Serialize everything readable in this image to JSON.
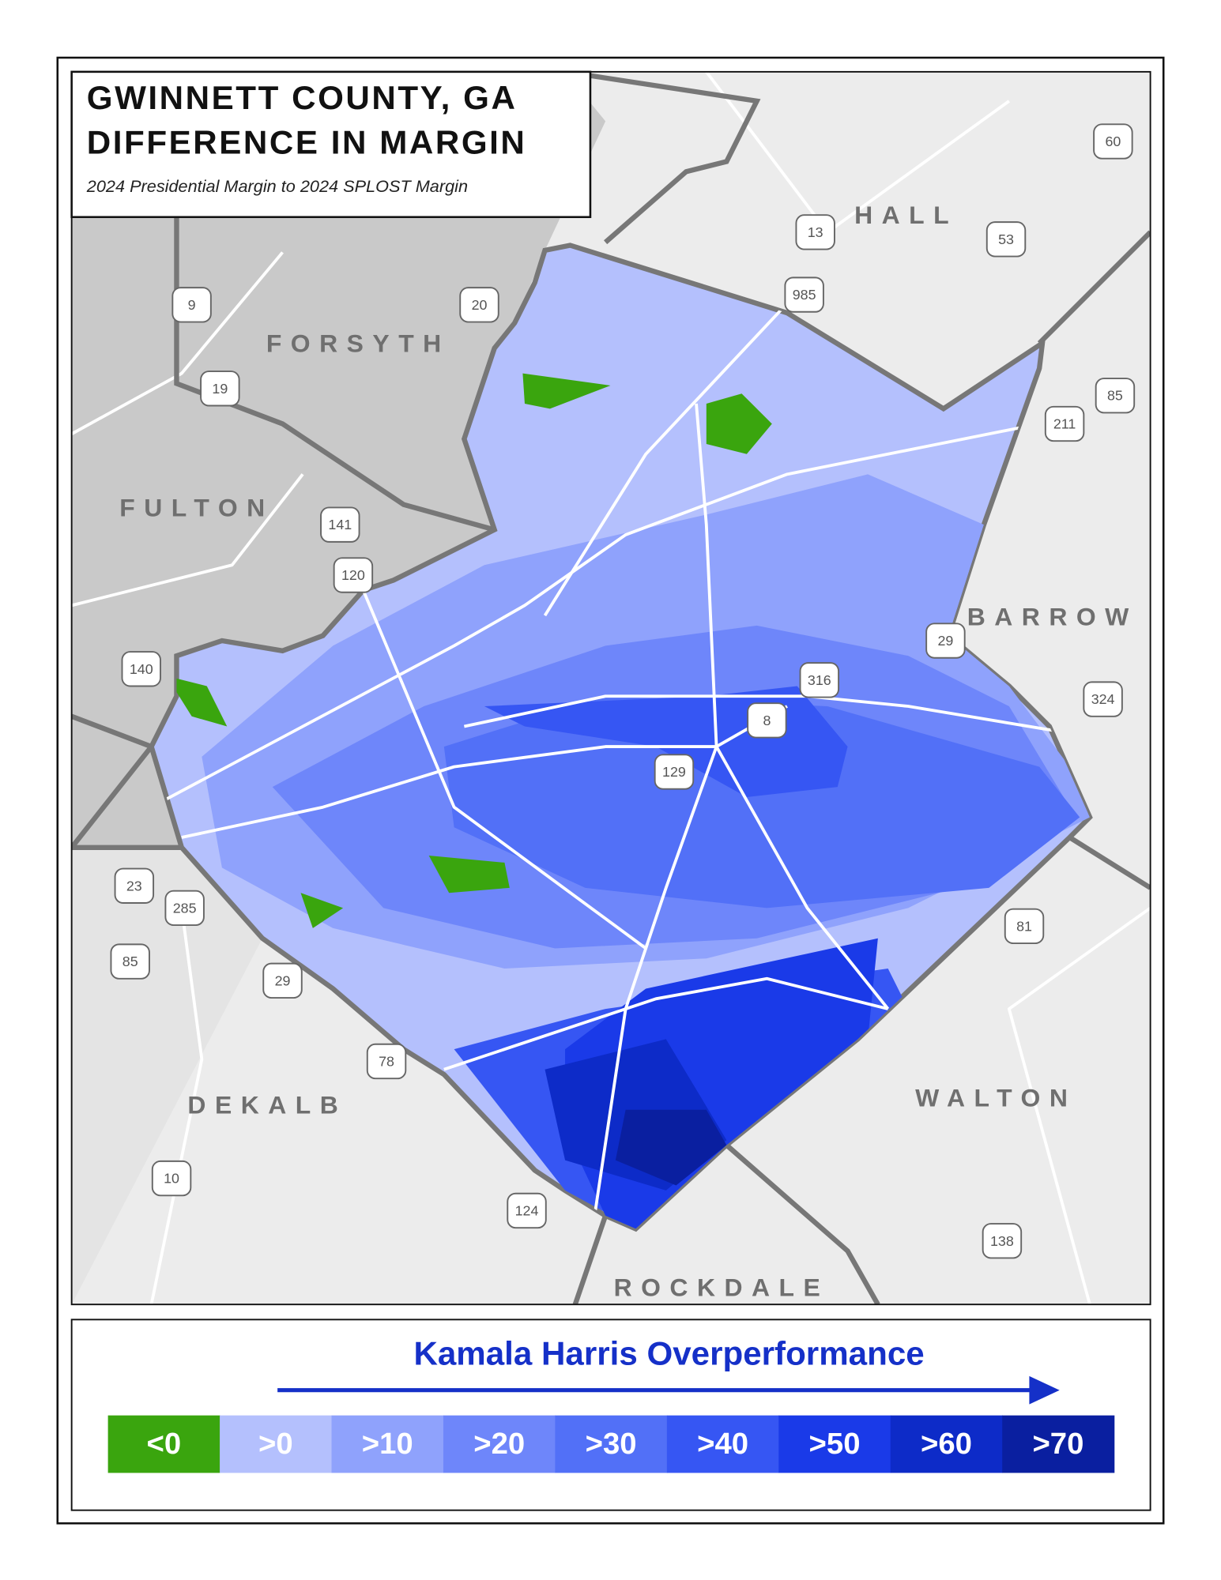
{
  "header": {
    "title": [
      "GWINNETT COUNTY, GA",
      "DIFFERENCE IN MARGIN"
    ],
    "subtitle": "2024 Presidential Margin to 2024 SPLOST Margin"
  },
  "counties": [
    "HALL",
    "FORSYTH",
    "FULTON",
    "BARROW",
    "DEKALB",
    "WALTON",
    "ROCKDALE"
  ],
  "highways": [
    "60",
    "13",
    "53",
    "985",
    "9",
    "20",
    "19",
    "85",
    "211",
    "141",
    "120",
    "29",
    "140",
    "316",
    "8",
    "324",
    "129",
    "23",
    "285",
    "81",
    "85",
    "29",
    "78",
    "10",
    "124",
    "138"
  ],
  "legend": {
    "title": "Kamala Harris Overperformance",
    "bins": [
      {
        "label": "<0",
        "color": "#3aa50e"
      },
      {
        "label": ">0",
        "color": "#b4c0fd"
      },
      {
        "label": ">10",
        "color": "#8fa2fc"
      },
      {
        "label": ">20",
        "color": "#6e86fa"
      },
      {
        "label": ">30",
        "color": "#5270f7"
      },
      {
        "label": ">40",
        "color": "#3656f3"
      },
      {
        "label": ">50",
        "color": "#1a3ae8"
      },
      {
        "label": ">60",
        "color": "#0d2bc8"
      },
      {
        "label": ">70",
        "color": "#0a1fa0"
      }
    ]
  }
}
